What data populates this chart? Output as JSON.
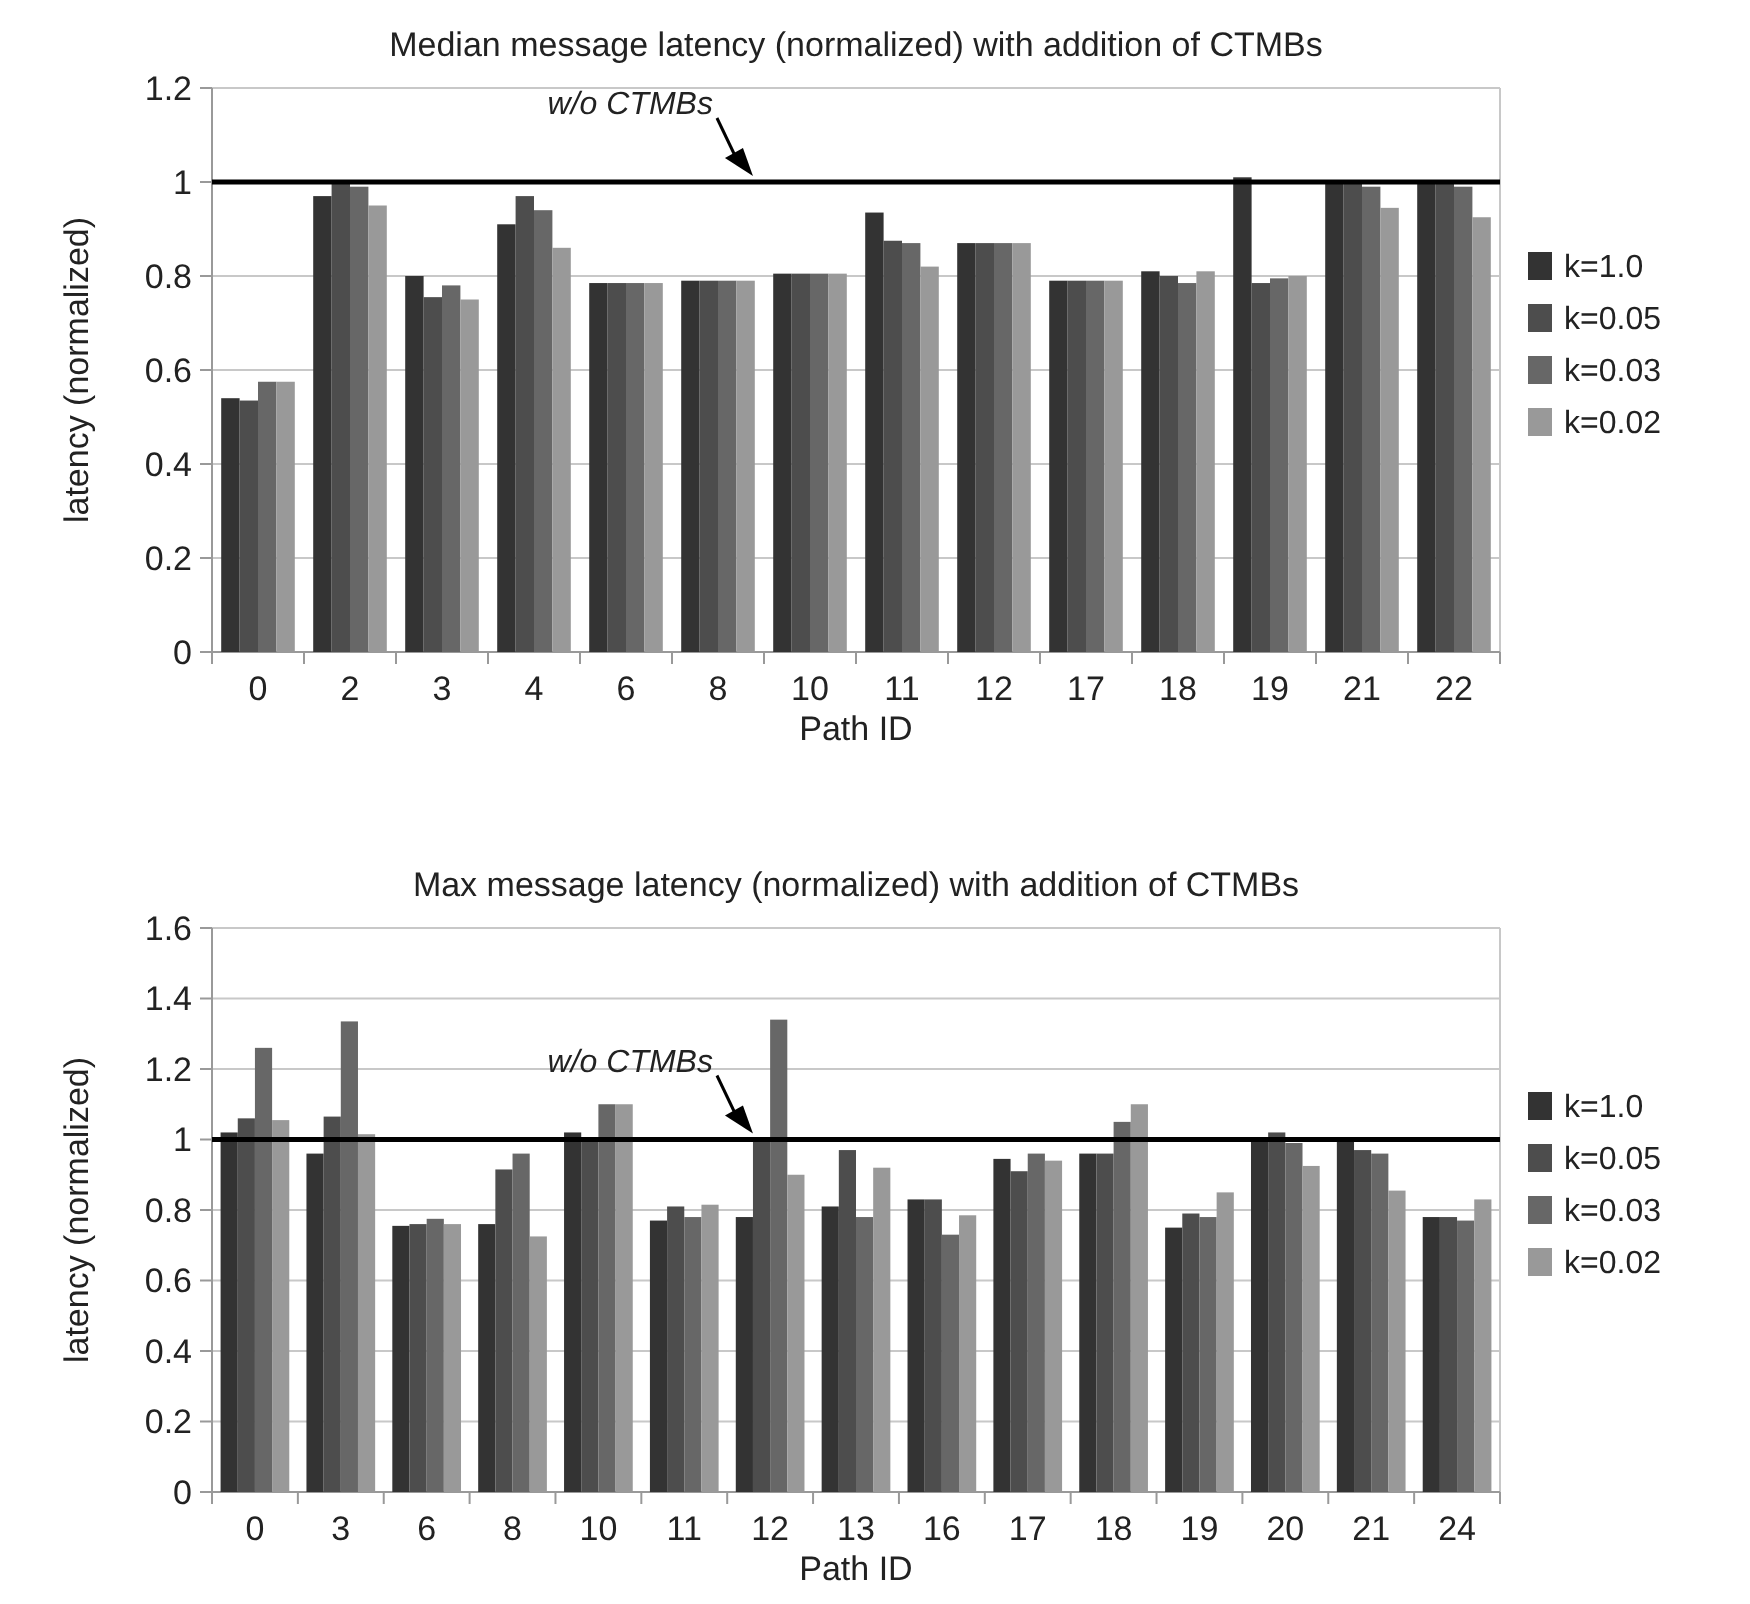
{
  "chart_data": [
    {
      "type": "bar",
      "title": "Median message latency (normalized) with addition of CTMBs",
      "xlabel": "Path ID",
      "ylabel": "latency (normalized)",
      "categories": [
        "0",
        "2",
        "3",
        "4",
        "6",
        "8",
        "10",
        "11",
        "12",
        "17",
        "18",
        "19",
        "21",
        "22"
      ],
      "series": [
        {
          "name": "k=1.0",
          "color": "#333333",
          "values": [
            0.54,
            0.97,
            0.8,
            0.91,
            0.785,
            0.79,
            0.805,
            0.935,
            0.87,
            0.79,
            0.81,
            1.01,
            1.0,
            1.0
          ]
        },
        {
          "name": "k=0.05",
          "color": "#4d4d4d",
          "values": [
            0.535,
            1.0,
            0.755,
            0.97,
            0.785,
            0.79,
            0.805,
            0.875,
            0.87,
            0.79,
            0.8,
            0.785,
            1.0,
            1.0
          ]
        },
        {
          "name": "k=0.03",
          "color": "#676767",
          "values": [
            0.575,
            0.99,
            0.78,
            0.94,
            0.785,
            0.79,
            0.805,
            0.87,
            0.87,
            0.79,
            0.785,
            0.795,
            0.99,
            0.99
          ]
        },
        {
          "name": "k=0.02",
          "color": "#999999",
          "values": [
            0.575,
            0.95,
            0.75,
            0.86,
            0.785,
            0.79,
            0.805,
            0.82,
            0.87,
            0.79,
            0.81,
            0.8,
            0.945,
            0.925
          ]
        }
      ],
      "ylim": [
        0,
        1.2
      ],
      "yticks": [
        0,
        0.2,
        0.4,
        0.6,
        0.8,
        1,
        1.2
      ],
      "grid": "y",
      "legend": "right",
      "ref_lines": [
        {
          "axis": "y",
          "value": 1,
          "label": "w/o CTMBs",
          "color": "#000000"
        }
      ]
    },
    {
      "type": "bar",
      "title": "Max  message latency (normalized) with addition of CTMBs",
      "xlabel": "Path ID",
      "ylabel": "latency (normalized)",
      "categories": [
        "0",
        "3",
        "6",
        "8",
        "10",
        "11",
        "12",
        "13",
        "16",
        "17",
        "18",
        "19",
        "20",
        "21",
        "24"
      ],
      "series": [
        {
          "name": "k=1.0",
          "color": "#333333",
          "values": [
            1.02,
            0.96,
            0.755,
            0.76,
            1.02,
            0.77,
            0.78,
            0.81,
            0.83,
            0.945,
            0.96,
            0.75,
            1.0,
            1.0,
            0.78
          ]
        },
        {
          "name": "k=0.05",
          "color": "#4d4d4d",
          "values": [
            1.06,
            1.065,
            0.76,
            0.915,
            1.0,
            0.81,
            1.0,
            0.97,
            0.83,
            0.91,
            0.96,
            0.79,
            1.02,
            0.97,
            0.78
          ]
        },
        {
          "name": "k=0.03",
          "color": "#676767",
          "values": [
            1.26,
            1.335,
            0.775,
            0.96,
            1.1,
            0.78,
            1.34,
            0.78,
            0.73,
            0.96,
            1.05,
            0.78,
            0.99,
            0.96,
            0.77
          ]
        },
        {
          "name": "k=0.02",
          "color": "#999999",
          "values": [
            1.055,
            1.015,
            0.76,
            0.725,
            1.1,
            0.815,
            0.9,
            0.92,
            0.785,
            0.94,
            1.1,
            0.85,
            0.925,
            0.855,
            0.83
          ]
        }
      ],
      "ylim": [
        0,
        1.6
      ],
      "yticks": [
        0,
        0.2,
        0.4,
        0.6,
        0.8,
        1,
        1.2,
        1.4,
        1.6
      ],
      "grid": "y",
      "legend": "right",
      "ref_lines": [
        {
          "axis": "y",
          "value": 1,
          "label": "w/o CTMBs",
          "color": "#000000"
        }
      ]
    }
  ]
}
